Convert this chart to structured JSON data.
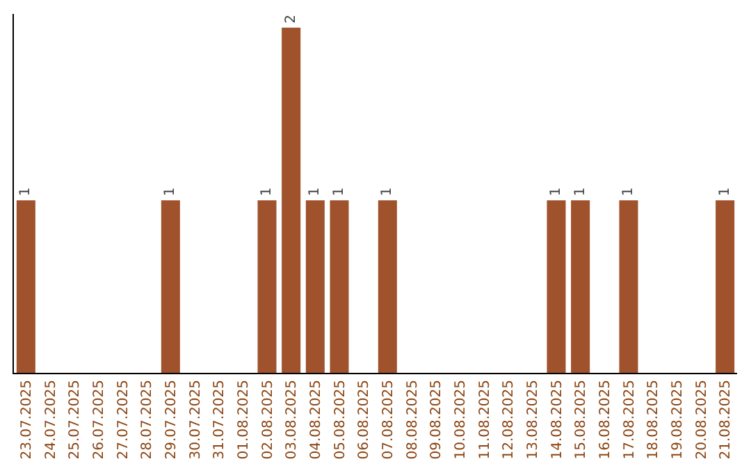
{
  "chart_data": {
    "type": "bar",
    "categories": [
      "23.07.2025",
      "24.07.2025",
      "25.07.2025",
      "26.07.2025",
      "27.07.2025",
      "28.07.2025",
      "29.07.2025",
      "30.07.2025",
      "31.07.2025",
      "01.08.2025",
      "02.08.2025",
      "03.08.2025",
      "04.08.2025",
      "05.08.2025",
      "06.08.2025",
      "07.08.2025",
      "08.08.2025",
      "09.08.2025",
      "10.08.2025",
      "11.08.2025",
      "12.08.2025",
      "13.08.2025",
      "14.08.2025",
      "15.08.2025",
      "16.08.2025",
      "17.08.2025",
      "18.08.2025",
      "19.08.2025",
      "20.08.2025",
      "21.08.2025"
    ],
    "values": [
      1,
      0,
      0,
      0,
      0,
      0,
      1,
      0,
      0,
      0,
      1,
      2,
      1,
      1,
      0,
      1,
      0,
      0,
      0,
      0,
      0,
      0,
      1,
      1,
      0,
      1,
      0,
      0,
      0,
      1
    ],
    "value_labels": [
      "1",
      null,
      null,
      null,
      null,
      null,
      "1",
      null,
      null,
      null,
      "1",
      "2",
      "1",
      "1",
      null,
      "1",
      null,
      null,
      null,
      null,
      null,
      null,
      "1",
      "1",
      null,
      "1",
      null,
      null,
      null,
      "1"
    ],
    "color": "#a0522d",
    "ylim": [
      0,
      2.08
    ],
    "tick_labels": "x"
  }
}
